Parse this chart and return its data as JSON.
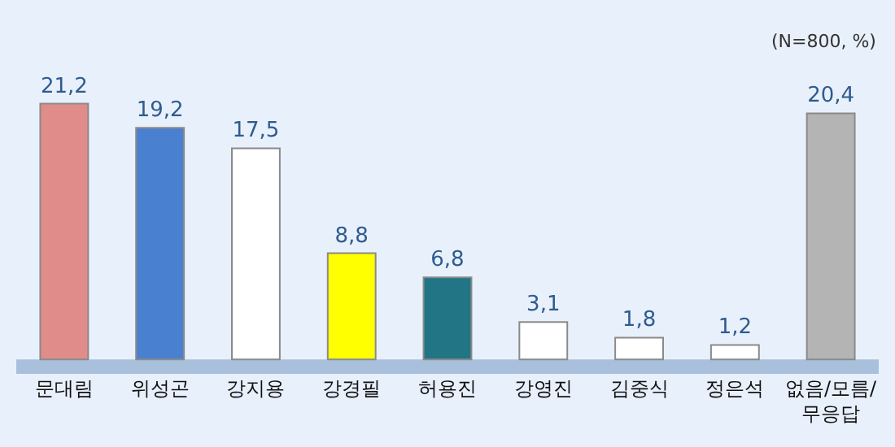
{
  "chart_data": {
    "type": "bar",
    "categories": [
      "문대림",
      "위성곤",
      "강지용",
      "강경필",
      "허용진",
      "강영진",
      "김중식",
      "정은석",
      "없음/모름/\n무응답"
    ],
    "values": [
      21.2,
      19.2,
      17.5,
      8.8,
      6.8,
      3.1,
      1.8,
      1.2,
      20.4
    ],
    "colors": [
      "#e08c8a",
      "#4a80d0",
      "#ffffff",
      "#ffff00",
      "#217585",
      "#ffffff",
      "#ffffff",
      "#ffffff",
      "#b4b4b4"
    ],
    "value_labels": [
      "21,2",
      "19,2",
      "17,5",
      "8,8",
      "6,8",
      "3,1",
      "1,8",
      "1,2",
      "20,4"
    ],
    "annotations": [
      "(N=800, %)"
    ],
    "grid": false
  }
}
